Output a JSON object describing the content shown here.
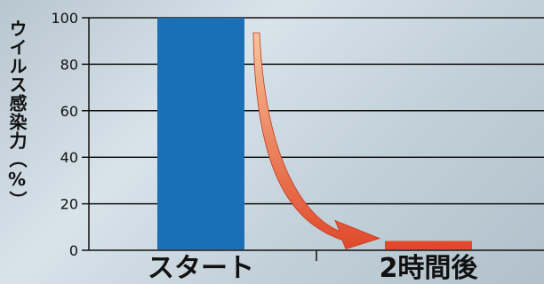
{
  "chart_data": {
    "type": "bar",
    "title": "",
    "xlabel": "",
    "ylabel": "ウイルス感染力（%）",
    "categories": [
      "スタート",
      "2時間後"
    ],
    "values": [
      100,
      4
    ],
    "ylim": [
      0,
      100
    ],
    "yticks": [
      "0",
      "20",
      "40",
      "60",
      "80",
      "100"
    ],
    "grid": true,
    "annotations": [
      {
        "type": "arrow",
        "from": "スタート",
        "to": "2時間後"
      }
    ],
    "colors": {
      "bar_1": "#1b6fb6",
      "bar_2": "#e0492b",
      "arrow_start": "#f7c49a",
      "arrow_end": "#e0492b",
      "grid": "#111111"
    }
  }
}
